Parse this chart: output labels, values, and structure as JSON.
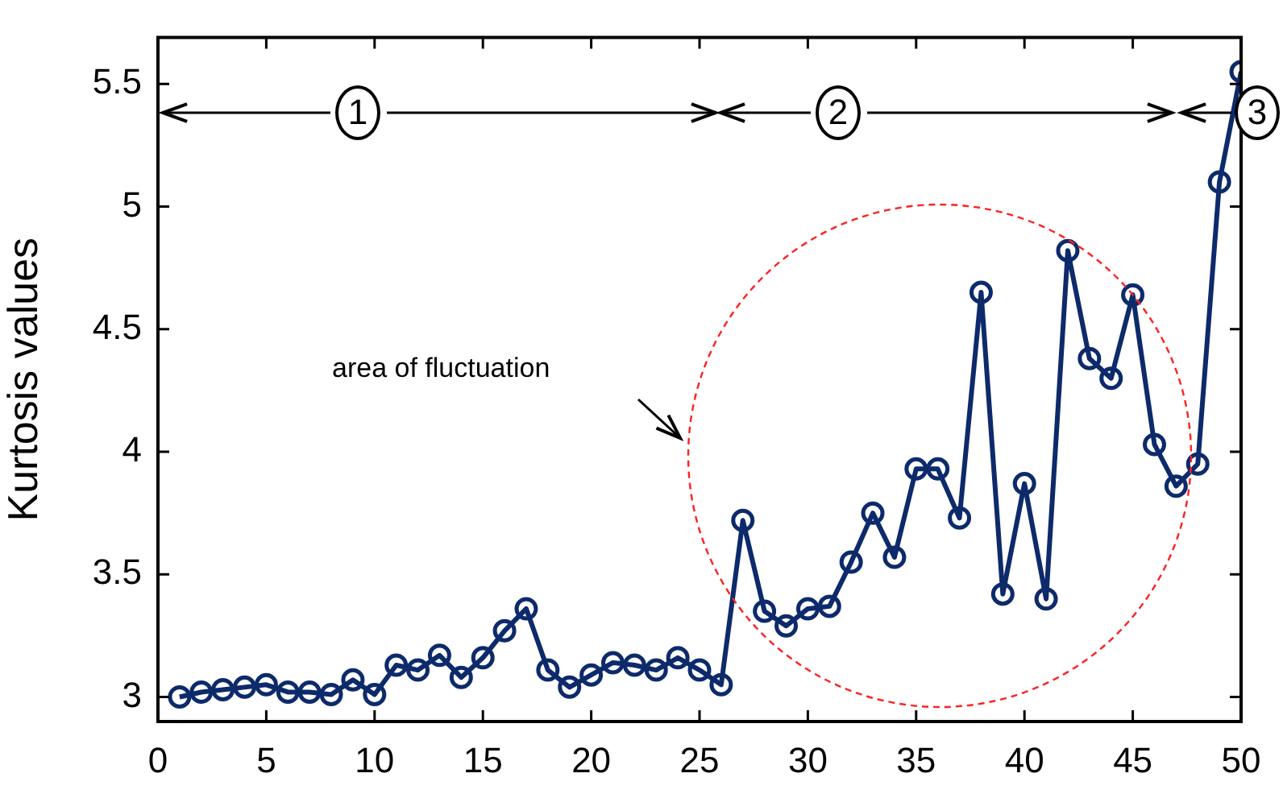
{
  "chart_data": {
    "type": "line",
    "ylabel": "Kurtosis values",
    "x": [
      1,
      2,
      3,
      4,
      5,
      6,
      7,
      8,
      9,
      10,
      11,
      12,
      13,
      14,
      15,
      16,
      17,
      18,
      19,
      20,
      21,
      22,
      23,
      24,
      25,
      26,
      27,
      28,
      29,
      30,
      31,
      32,
      33,
      34,
      35,
      36,
      37,
      38,
      39,
      40,
      41,
      42,
      43,
      44,
      45,
      46,
      47,
      48,
      49,
      50
    ],
    "series": [
      {
        "color": "#0d2a6b",
        "values": [
          3.0,
          3.02,
          3.03,
          3.04,
          3.05,
          3.02,
          3.02,
          3.01,
          3.07,
          3.01,
          3.13,
          3.11,
          3.17,
          3.08,
          3.16,
          3.27,
          3.36,
          3.11,
          3.04,
          3.09,
          3.14,
          3.13,
          3.11,
          3.16,
          3.11,
          3.05,
          3.72,
          3.35,
          3.29,
          3.36,
          3.37,
          3.55,
          3.75,
          3.57,
          3.93,
          3.93,
          3.73,
          4.65,
          3.42,
          3.87,
          3.4,
          4.82,
          4.38,
          4.3,
          4.64,
          4.03,
          3.86,
          3.95,
          5.1,
          5.55
        ]
      }
    ],
    "xlim": [
      0,
      50
    ],
    "xticks": [
      0,
      5,
      10,
      15,
      20,
      25,
      30,
      35,
      40,
      45,
      50
    ],
    "ylim": [
      2.9,
      5.69
    ],
    "yticks": [
      3,
      3.5,
      4,
      4.5,
      5,
      5.5
    ],
    "marker": "circle",
    "line_style": "solid",
    "grid": false,
    "legend": false,
    "annotations": [
      "1",
      "2",
      "3",
      "area of fluctuation"
    ]
  }
}
